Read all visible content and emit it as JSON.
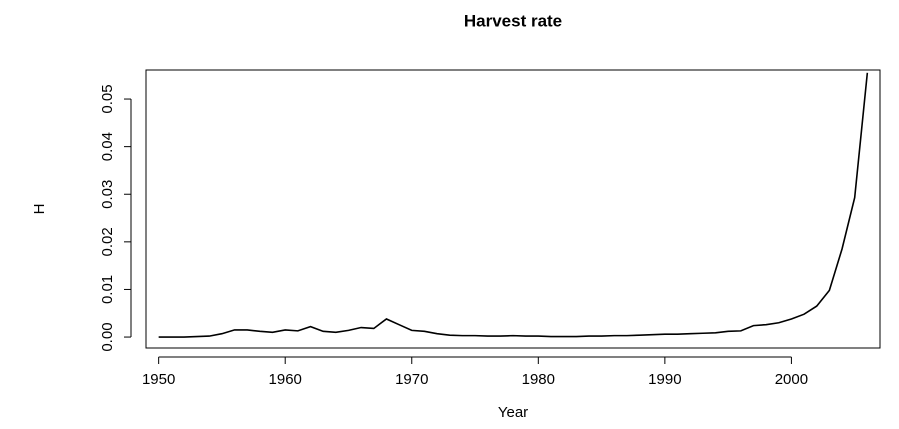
{
  "chart_data": {
    "type": "line",
    "title": "Harvest rate",
    "x_label": "Year",
    "y_label": "H",
    "x": [
      1950,
      1951,
      1952,
      1953,
      1954,
      1955,
      1956,
      1957,
      1958,
      1959,
      1960,
      1961,
      1962,
      1963,
      1964,
      1965,
      1966,
      1967,
      1968,
      1969,
      1970,
      1971,
      1972,
      1973,
      1974,
      1975,
      1976,
      1977,
      1978,
      1979,
      1980,
      1981,
      1982,
      1983,
      1984,
      1985,
      1986,
      1987,
      1988,
      1989,
      1990,
      1991,
      1992,
      1993,
      1994,
      1995,
      1996,
      1997,
      1998,
      1999,
      2000,
      2001,
      2002,
      2003,
      2004,
      2005,
      2006
    ],
    "series": [
      {
        "name": "H",
        "color": "#000000",
        "values": [
          0.0,
          0.0,
          0.0,
          0.0001,
          0.0002,
          0.0007,
          0.0015,
          0.0015,
          0.0012,
          0.001,
          0.0015,
          0.0013,
          0.0022,
          0.0012,
          0.001,
          0.0014,
          0.002,
          0.0018,
          0.0038,
          0.0026,
          0.0014,
          0.0012,
          0.0007,
          0.0004,
          0.0003,
          0.0003,
          0.0002,
          0.0002,
          0.0003,
          0.0002,
          0.0002,
          0.0001,
          0.0001,
          0.0001,
          0.0002,
          0.0002,
          0.0003,
          0.0003,
          0.0004,
          0.0005,
          0.0006,
          0.0006,
          0.0007,
          0.0008,
          0.0009,
          0.0012,
          0.0013,
          0.0024,
          0.0026,
          0.003,
          0.0038,
          0.0048,
          0.0065,
          0.0098,
          0.0185,
          0.0293,
          0.0555
        ]
      }
    ],
    "xlim": [
      1949,
      2007
    ],
    "xticks": [
      1950,
      1960,
      1970,
      1980,
      1990,
      2000
    ],
    "ylim": [
      -0.0023,
      0.0561
    ],
    "yticks": [
      {
        "value": 0,
        "label": "0.00"
      },
      0.01,
      0.02,
      0.03,
      0.04,
      0.05
    ],
    "grid": false
  }
}
